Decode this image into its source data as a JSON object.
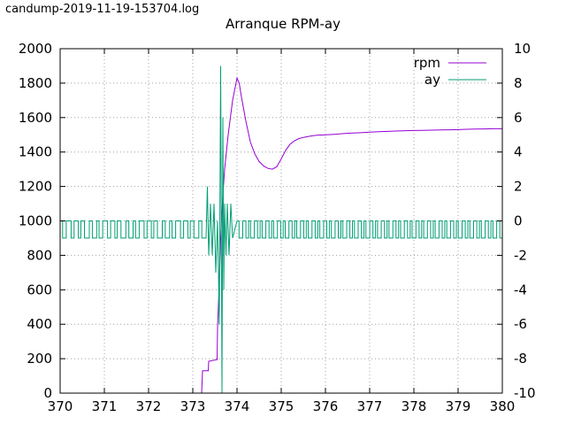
{
  "file_label": "candump-2019-11-19-153704.log",
  "chart_data": {
    "type": "line",
    "title": "Arranque RPM-ay",
    "xlim": [
      370,
      380
    ],
    "ylim": [
      0,
      2000
    ],
    "y2lim": [
      -10,
      10
    ],
    "x_ticks": [
      "370",
      "371",
      "372",
      "373",
      "374",
      "375",
      "376",
      "377",
      "378",
      "379",
      "380"
    ],
    "y_ticks": [
      "0",
      "200",
      "400",
      "600",
      "800",
      "1000",
      "1200",
      "1400",
      "1600",
      "1800",
      "2000"
    ],
    "y2_ticks": [
      "-10",
      "-8",
      "-6",
      "-4",
      "-2",
      "0",
      "2",
      "4",
      "6",
      "8",
      "10"
    ],
    "grid": true,
    "legend_position": "top-right",
    "series": [
      {
        "name": "rpm",
        "axis": "left",
        "color": "#9400d3",
        "x": [
          370,
          373.2,
          373.22,
          373.35,
          373.36,
          373.55,
          373.56,
          373.6,
          373.63,
          373.68,
          373.72,
          373.8,
          373.9,
          374.0,
          374.05,
          374.1,
          374.2,
          374.3,
          374.4,
          374.5,
          374.6,
          374.7,
          374.8,
          374.9,
          375.0,
          375.1,
          375.2,
          375.3,
          375.4,
          375.5,
          375.6,
          375.7,
          375.8,
          376.0,
          376.2,
          376.4,
          376.6,
          376.8,
          377.0,
          377.2,
          377.4,
          377.6,
          377.8,
          378.0,
          378.2,
          378.4,
          378.6,
          378.8,
          379.0,
          379.2,
          379.4,
          379.6,
          379.8,
          380.0
        ],
        "y": [
          0,
          0,
          130,
          130,
          185,
          195,
          380,
          650,
          900,
          1150,
          1300,
          1500,
          1700,
          1830,
          1800,
          1720,
          1580,
          1460,
          1390,
          1345,
          1320,
          1305,
          1300,
          1315,
          1360,
          1410,
          1445,
          1465,
          1478,
          1485,
          1490,
          1494,
          1497,
          1500,
          1503,
          1507,
          1510,
          1512,
          1515,
          1518,
          1520,
          1522,
          1524,
          1525,
          1526,
          1527,
          1528,
          1529,
          1530,
          1532,
          1533,
          1534,
          1535,
          1535
        ]
      },
      {
        "name": "ay",
        "axis": "right",
        "color": "#009e73",
        "x": [
          370,
          373.3,
          373.33,
          373.36,
          373.4,
          373.44,
          373.48,
          373.52,
          373.56,
          373.6,
          373.63,
          373.66,
          373.68,
          373.7,
          373.72,
          373.75,
          373.78,
          373.82,
          373.86,
          373.9,
          374.0,
          380
        ],
        "y": [
          -1,
          -1,
          2,
          -2,
          1,
          -2,
          1,
          -3,
          0,
          -6,
          9,
          -10,
          6,
          -4,
          1,
          -2,
          1,
          -2,
          1,
          -1,
          0,
          0
        ]
      }
    ]
  }
}
